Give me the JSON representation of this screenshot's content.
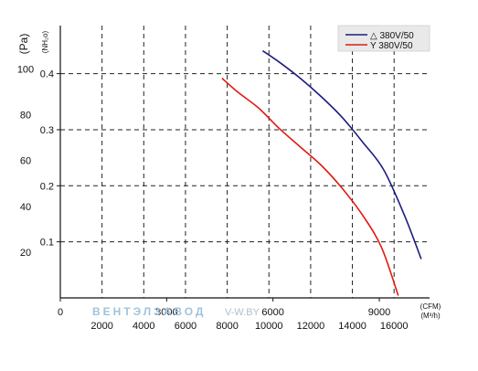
{
  "chart_data": {
    "type": "line",
    "title": "",
    "axes": {
      "pa_label": "(Pa)",
      "nh2o_label": "(NH₂o)",
      "pa_ticks": [
        "20",
        "40",
        "60",
        "80",
        "100"
      ],
      "nh2o_ticks": [
        "0.1",
        "0.2",
        "0.3",
        "0.4"
      ],
      "cfm_label": "(CFM)",
      "m3h_label": "(M³/h)",
      "cfm_ticks": [
        "0",
        "3000",
        "6000",
        "9000"
      ],
      "m3h_ticks": [
        "2000",
        "4000",
        "6000",
        "8000",
        "10000",
        "12000",
        "14000",
        "16000"
      ]
    },
    "grid": true,
    "legend_position": "top-right",
    "xlim_m3h": [
      0,
      17700
    ],
    "ylim_pa": [
      0,
      119
    ],
    "series": [
      {
        "name": "△ 380V/50",
        "color": "#1c1c80",
        "x": [
          9700,
          10500,
          11500,
          12500,
          13500,
          14500,
          15500,
          16500,
          17300
        ],
        "y": [
          108,
          103,
          96,
          88,
          79,
          68,
          56,
          36,
          17
        ]
      },
      {
        "name": "Y 380V/50",
        "color": "#e01a12",
        "x": [
          7750,
          8500,
          9500,
          10500,
          11500,
          12500,
          13500,
          14500,
          15400,
          16200
        ],
        "y": [
          96,
          90,
          83,
          74,
          66,
          58,
          48,
          36,
          22,
          1
        ]
      }
    ],
    "watermark": {
      "text": "ВЕНТЭЛЗАВОД",
      "site": "V-W.BY"
    }
  },
  "colors": {
    "grid": "#222222",
    "axis": "#111111",
    "background": "#ffffff"
  }
}
